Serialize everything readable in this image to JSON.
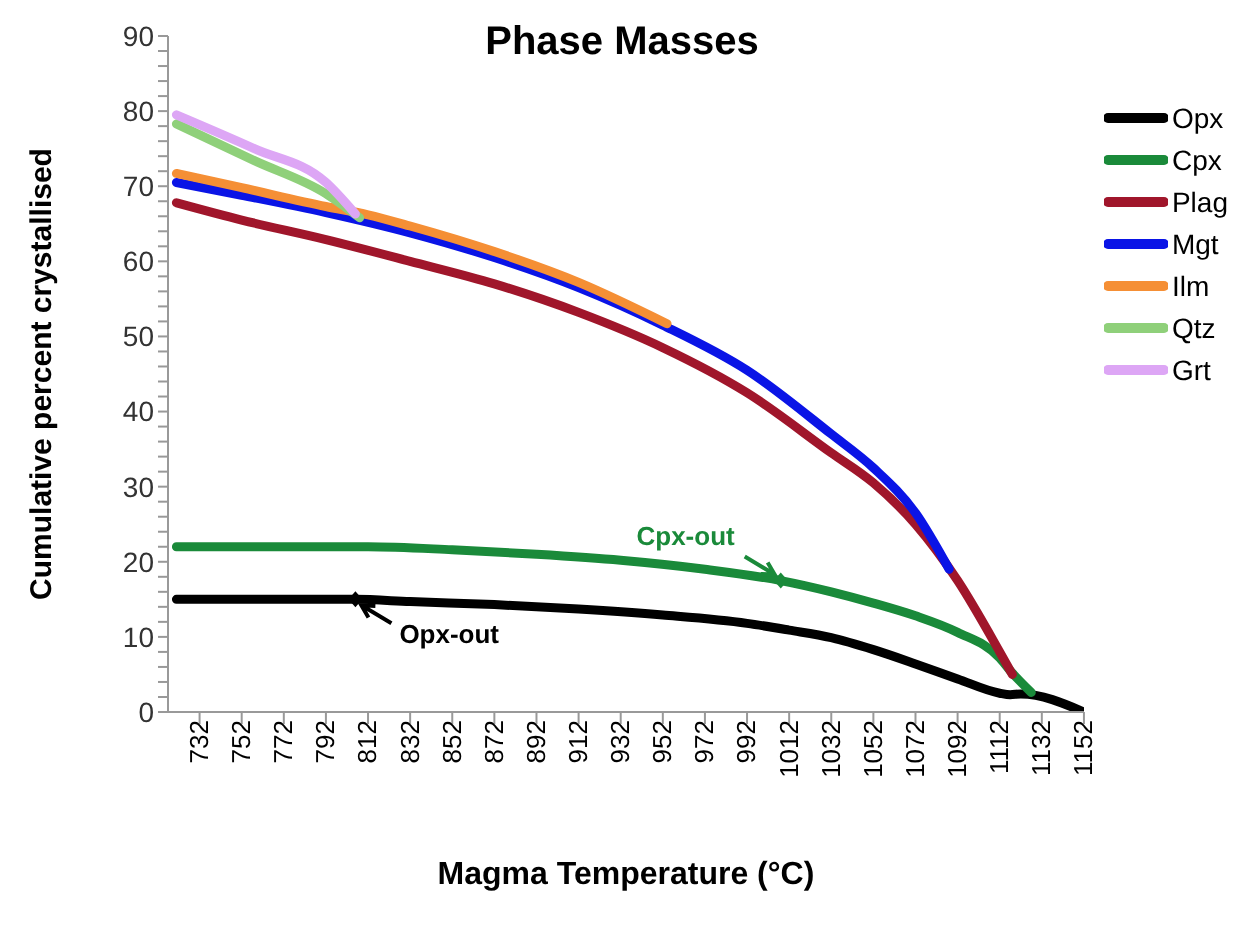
{
  "chart_data": {
    "type": "line",
    "title": "Phase Masses",
    "xlabel": "Magma Temperature (°C)",
    "ylabel": "Cumulative percent crystallised",
    "xlim": [
      717,
      1152
    ],
    "xticks": [
      732,
      752,
      772,
      792,
      812,
      832,
      852,
      872,
      892,
      912,
      932,
      952,
      972,
      992,
      1012,
      1032,
      1052,
      1072,
      1092,
      1112,
      1132,
      1152
    ],
    "ylim": [
      0,
      90
    ],
    "yticks": [
      0,
      {
        "value": 2,
        "label": null
      },
      {
        "value": 4,
        "label": null
      },
      {
        "value": 6,
        "label": null
      },
      {
        "value": 8,
        "label": null
      },
      10,
      {
        "value": 12,
        "label": null
      },
      {
        "value": 14,
        "label": null
      },
      {
        "value": 16,
        "label": null
      },
      {
        "value": 18,
        "label": null
      },
      20,
      {
        "value": 22,
        "label": null
      },
      {
        "value": 24,
        "label": null
      },
      {
        "value": 26,
        "label": null
      },
      {
        "value": 28,
        "label": null
      },
      30,
      {
        "value": 32,
        "label": null
      },
      {
        "value": 34,
        "label": null
      },
      {
        "value": 36,
        "label": null
      },
      {
        "value": 38,
        "label": null
      },
      40,
      {
        "value": 42,
        "label": null
      },
      {
        "value": 44,
        "label": null
      },
      {
        "value": 46,
        "label": null
      },
      {
        "value": 48,
        "label": null
      },
      50,
      {
        "value": 52,
        "label": null
      },
      {
        "value": 54,
        "label": null
      },
      {
        "value": 56,
        "label": null
      },
      {
        "value": 58,
        "label": null
      },
      60,
      {
        "value": 62,
        "label": null
      },
      {
        "value": 64,
        "label": null
      },
      {
        "value": 66,
        "label": null
      },
      {
        "value": 68,
        "label": null
      },
      70,
      {
        "value": 72,
        "label": null
      },
      {
        "value": 74,
        "label": null
      },
      {
        "value": 76,
        "label": null
      },
      {
        "value": 78,
        "label": null
      },
      80,
      {
        "value": 82,
        "label": null
      },
      {
        "value": 84,
        "label": null
      },
      {
        "value": 86,
        "label": null
      },
      {
        "value": 88,
        "label": null
      },
      90
    ],
    "grid": false,
    "legend": "top right",
    "line_style": "solid",
    "annotations": [
      {
        "text": "Opx-out",
        "x": 806,
        "y": 15
      },
      {
        "text": "Cpx-out",
        "x": 1008,
        "y": 17.5
      }
    ],
    "series": [
      {
        "name": "Opx",
        "color": "#000000",
        "x": [
          721,
          752,
          792,
          806,
          832,
          872,
          912,
          952,
          992,
          1012,
          1032,
          1052,
          1072,
          1092,
          1112,
          1117,
          1122,
          1152
        ],
        "values": [
          15,
          15,
          15,
          15,
          14.7,
          14.3,
          13.7,
          12.9,
          11.8,
          10.9,
          9.9,
          8.3,
          6.4,
          4.4,
          2.5,
          2.3,
          2.4,
          0
        ]
      },
      {
        "name": "Cpx",
        "color": "#1a8a3a",
        "x": [
          721,
          752,
          792,
          812,
          852,
          892,
          932,
          972,
          1008,
          1032,
          1052,
          1072,
          1092,
          1112,
          1117,
          1127
        ],
        "values": [
          22,
          22,
          22,
          22,
          21.6,
          21,
          20.2,
          19,
          17.5,
          16,
          14.5,
          12.8,
          10.6,
          7.2,
          5.5,
          2.6
        ]
      },
      {
        "name": "Plag",
        "color": "#a0162b",
        "x": [
          721,
          752,
          792,
          832,
          872,
          912,
          952,
          992,
          1032,
          1052,
          1072,
          1092,
          1112,
          1118
        ],
        "values": [
          67.8,
          65.5,
          62.9,
          60,
          57,
          53.2,
          48.5,
          42.5,
          34.5,
          30.5,
          25,
          17.5,
          8,
          5
        ]
      },
      {
        "name": "Mgt",
        "color": "#0a14e6",
        "x": [
          721,
          752,
          792,
          832,
          872,
          912,
          952,
          992,
          1032,
          1052,
          1072,
          1088
        ],
        "values": [
          70.5,
          68.8,
          66.5,
          63.8,
          60.5,
          56.5,
          51.5,
          45.5,
          37,
          32.5,
          26.5,
          19
        ]
      },
      {
        "name": "Ilm",
        "color": "#f58f35",
        "x": [
          721,
          752,
          792,
          812,
          832,
          872,
          912,
          954
        ],
        "values": [
          71.7,
          69.8,
          67.3,
          66.2,
          64.7,
          61.3,
          57.2,
          51.7
        ]
      },
      {
        "name": "Qtz",
        "color": "#8fd07a",
        "x": [
          721,
          758,
          792,
          808
        ],
        "values": [
          78.3,
          73.4,
          69,
          65.8
        ]
      },
      {
        "name": "Grt",
        "color": "#dda6f5",
        "x": [
          721,
          758,
          792,
          806
        ],
        "values": [
          79.5,
          75,
          70.5,
          66.3
        ]
      }
    ]
  }
}
